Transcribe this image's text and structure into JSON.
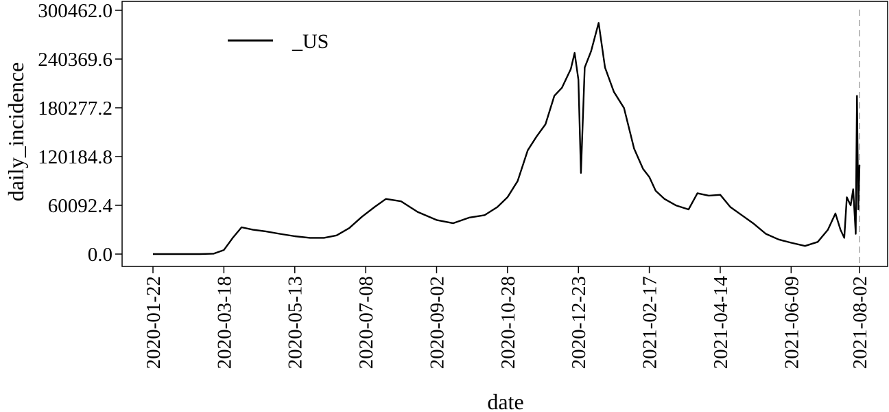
{
  "chart_data": {
    "type": "line",
    "xlabel": "date",
    "ylabel": "daily_incidence",
    "ylim": [
      0,
      300462.0
    ],
    "x_range": [
      "2020-01-22",
      "2021-08-02"
    ],
    "y_ticks": [
      "0.0",
      "60092.4",
      "120184.8",
      "180277.2",
      "240369.6",
      "300462.0"
    ],
    "x_ticks": [
      "2020-01-22",
      "2020-03-18",
      "2020-05-13",
      "2020-07-08",
      "2020-09-02",
      "2020-10-28",
      "2020-12-23",
      "2021-02-17",
      "2021-04-14",
      "2021-06-09",
      "2021-08-02"
    ],
    "legend": {
      "position": "top-left",
      "entries": [
        "_US"
      ]
    },
    "vline": {
      "date": "2021-08-02",
      "style": "dashed",
      "color": "#bbbbbb"
    },
    "series": [
      {
        "name": "_US",
        "color": "#000000",
        "x": [
          "2020-01-22",
          "2020-02-28",
          "2020-03-10",
          "2020-03-18",
          "2020-03-25",
          "2020-04-01",
          "2020-04-10",
          "2020-04-20",
          "2020-05-01",
          "2020-05-13",
          "2020-05-25",
          "2020-06-05",
          "2020-06-15",
          "2020-06-25",
          "2020-07-05",
          "2020-07-15",
          "2020-07-24",
          "2020-08-05",
          "2020-08-18",
          "2020-09-02",
          "2020-09-15",
          "2020-09-28",
          "2020-10-10",
          "2020-10-20",
          "2020-10-28",
          "2020-11-05",
          "2020-11-13",
          "2020-11-20",
          "2020-11-27",
          "2020-12-04",
          "2020-12-10",
          "2020-12-17",
          "2020-12-20",
          "2020-12-23",
          "2020-12-25",
          "2020-12-28",
          "2021-01-02",
          "2021-01-08",
          "2021-01-13",
          "2021-01-20",
          "2021-01-28",
          "2021-02-05",
          "2021-02-12",
          "2021-02-17",
          "2021-02-22",
          "2021-03-01",
          "2021-03-10",
          "2021-03-20",
          "2021-03-27",
          "2021-04-05",
          "2021-04-14",
          "2021-04-22",
          "2021-05-01",
          "2021-05-10",
          "2021-05-20",
          "2021-05-30",
          "2021-06-09",
          "2021-06-20",
          "2021-06-30",
          "2021-07-08",
          "2021-07-14",
          "2021-07-18",
          "2021-07-21",
          "2021-07-23",
          "2021-07-26",
          "2021-07-28",
          "2021-07-30",
          "2021-07-31",
          "2021-08-01",
          "2021-08-02"
        ],
        "values": [
          0,
          0,
          500,
          5000,
          20000,
          33000,
          30000,
          28000,
          25000,
          22000,
          20000,
          20000,
          23000,
          32000,
          46000,
          58000,
          68000,
          65000,
          52000,
          42000,
          38000,
          45000,
          48000,
          58000,
          70000,
          90000,
          128000,
          145000,
          160000,
          195000,
          205000,
          228000,
          248000,
          215000,
          100000,
          230000,
          250000,
          285000,
          230000,
          200000,
          180000,
          130000,
          105000,
          95000,
          78000,
          68000,
          60000,
          55000,
          75000,
          72000,
          73000,
          58000,
          48000,
          38000,
          25000,
          18000,
          14000,
          10000,
          15000,
          30000,
          50000,
          30000,
          20000,
          70000,
          60000,
          80000,
          25000,
          195000,
          55000,
          110000
        ]
      }
    ]
  }
}
